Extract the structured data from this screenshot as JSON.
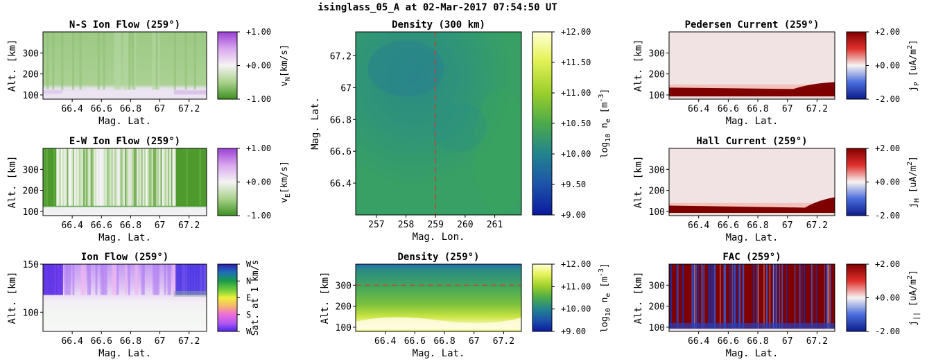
{
  "suptitle": "isinglass_05_A at 02-Mar-2017 07:54:50 UT",
  "colors": {
    "green": "#4d9a2a",
    "purple": "#b45fe0",
    "dark_red": "#7f0000",
    "blue": "#1a1ab4",
    "yellow": "#fffecd"
  },
  "chart_data": [
    {
      "id": "ns",
      "type": "heatmap",
      "title": "N-S Ion Flow (259°)",
      "xlabel": "Mag. Lat.",
      "ylabel": "Alt. [km]",
      "xticks": [
        "66.4",
        "66.6",
        "66.8",
        "67",
        "67.2"
      ],
      "yticks": [
        "100",
        "200",
        "300"
      ],
      "xlim": [
        66.2,
        67.32
      ],
      "ylim": [
        80,
        400
      ],
      "colorbar": {
        "label": "v",
        "label_sub": "N",
        "label_unit": "[km/s]",
        "ticks": [
          "+1.00",
          "+0.00",
          "-1.00"
        ]
      }
    },
    {
      "id": "ew",
      "type": "heatmap",
      "title": "E-W Ion Flow (259°)",
      "xlabel": "Mag. Lat.",
      "ylabel": "Alt. [km]",
      "xticks": [
        "66.4",
        "66.6",
        "66.8",
        "67",
        "67.2"
      ],
      "yticks": [
        "100",
        "200",
        "300"
      ],
      "xlim": [
        66.2,
        67.32
      ],
      "ylim": [
        80,
        400
      ],
      "colorbar": {
        "label": "v",
        "label_sub": "E",
        "label_unit": "[km/s]",
        "ticks": [
          "+1.00",
          "+0.00",
          "-1.00"
        ]
      }
    },
    {
      "id": "if",
      "type": "heatmap",
      "title": "Ion Flow (259°)",
      "xlabel": "Mag. Lat.",
      "ylabel": "Alt. [km]",
      "xticks": [
        "66.4",
        "66.6",
        "66.8",
        "67",
        "67.2"
      ],
      "yticks": [
        "100",
        "150"
      ],
      "xlim": [
        66.2,
        67.32
      ],
      "ylim": [
        80,
        150
      ],
      "colorbar": {
        "label": "Sat. at 1 km/s",
        "ticks": [
          "W",
          "N",
          "E",
          "S",
          "W"
        ]
      }
    },
    {
      "id": "dmap",
      "type": "heatmap",
      "title": "Density (300 km)",
      "xlabel": "Mag. Lon.",
      "ylabel": "Mag. Lat.",
      "xticks": [
        "257",
        "258",
        "259",
        "260",
        "261"
      ],
      "yticks": [
        "67.2",
        "67",
        "66.8",
        "66.6",
        "66.4"
      ],
      "xlim": [
        256.3,
        261.9
      ],
      "ylim": [
        66.2,
        67.35
      ],
      "marker_line": {
        "x": 259
      },
      "colorbar": {
        "label": "log",
        "label_sub": "10",
        "label_mid": " n",
        "label_sub2": "e",
        "label_unit": " [m",
        "label_sup": "-3",
        "label_end": "]",
        "ticks": [
          "+12.00",
          "+11.50",
          "+11.00",
          "+10.50",
          "+10.00",
          "+9.50",
          "+9.00"
        ]
      }
    },
    {
      "id": "dalt",
      "type": "heatmap",
      "title": "Density (259°)",
      "xlabel": "Mag. Lat.",
      "ylabel": "Alt. [km]",
      "xticks": [
        "66.4",
        "66.6",
        "66.8",
        "67",
        "67.2"
      ],
      "yticks": [
        "100",
        "200",
        "300"
      ],
      "xlim": [
        66.2,
        67.32
      ],
      "ylim": [
        80,
        400
      ],
      "marker_line": {
        "y": 300
      },
      "colorbar": {
        "label": "log",
        "label_sub": "10",
        "label_mid": " n",
        "label_sub2": "e",
        "label_unit": " [m",
        "label_sup": "-3",
        "label_end": "]",
        "ticks": [
          "+12.00",
          "+11.00",
          "+10.00",
          "+9.00"
        ]
      }
    },
    {
      "id": "ped",
      "type": "heatmap",
      "title": "Pedersen Current (259°)",
      "xlabel": "Mag. Lat.",
      "ylabel": "Alt. [km]",
      "xticks": [
        "66.4",
        "66.6",
        "66.8",
        "67",
        "67.2"
      ],
      "yticks": [
        "100",
        "200",
        "300"
      ],
      "xlim": [
        66.2,
        67.32
      ],
      "ylim": [
        80,
        400
      ],
      "colorbar": {
        "label": "j",
        "label_sub": "P",
        "label_unit": " [uA/m",
        "label_sup": "2",
        "label_end": "]",
        "ticks": [
          "+2.00",
          "+0.00",
          "-2.00"
        ]
      }
    },
    {
      "id": "hall",
      "type": "heatmap",
      "title": "Hall Current (259°)",
      "xlabel": "Mag. Lat.",
      "ylabel": "Alt. [km]",
      "xticks": [
        "66.4",
        "66.6",
        "66.8",
        "67",
        "67.2"
      ],
      "yticks": [
        "100",
        "200",
        "300"
      ],
      "xlim": [
        66.2,
        67.32
      ],
      "ylim": [
        80,
        400
      ],
      "colorbar": {
        "label": "j",
        "label_sub": "H",
        "label_unit": " [uA/m",
        "label_sup": "2",
        "label_end": "]",
        "ticks": [
          "+2.00",
          "+0.00",
          "-2.00"
        ]
      }
    },
    {
      "id": "fac",
      "type": "heatmap",
      "title": "FAC (259°)",
      "xlabel": "Mag. Lat.",
      "ylabel": "Alt. [km]",
      "xticks": [
        "66.4",
        "66.6",
        "66.8",
        "67",
        "67.2"
      ],
      "yticks": [
        "100",
        "200",
        "300"
      ],
      "xlim": [
        66.2,
        67.32
      ],
      "ylim": [
        80,
        400
      ],
      "colorbar": {
        "label": "j",
        "label_sub": "||",
        "label_unit": " [uA/m",
        "label_sup": "2",
        "label_end": "]",
        "ticks": [
          "+2.00",
          "+0.00",
          "-2.00"
        ]
      }
    }
  ]
}
